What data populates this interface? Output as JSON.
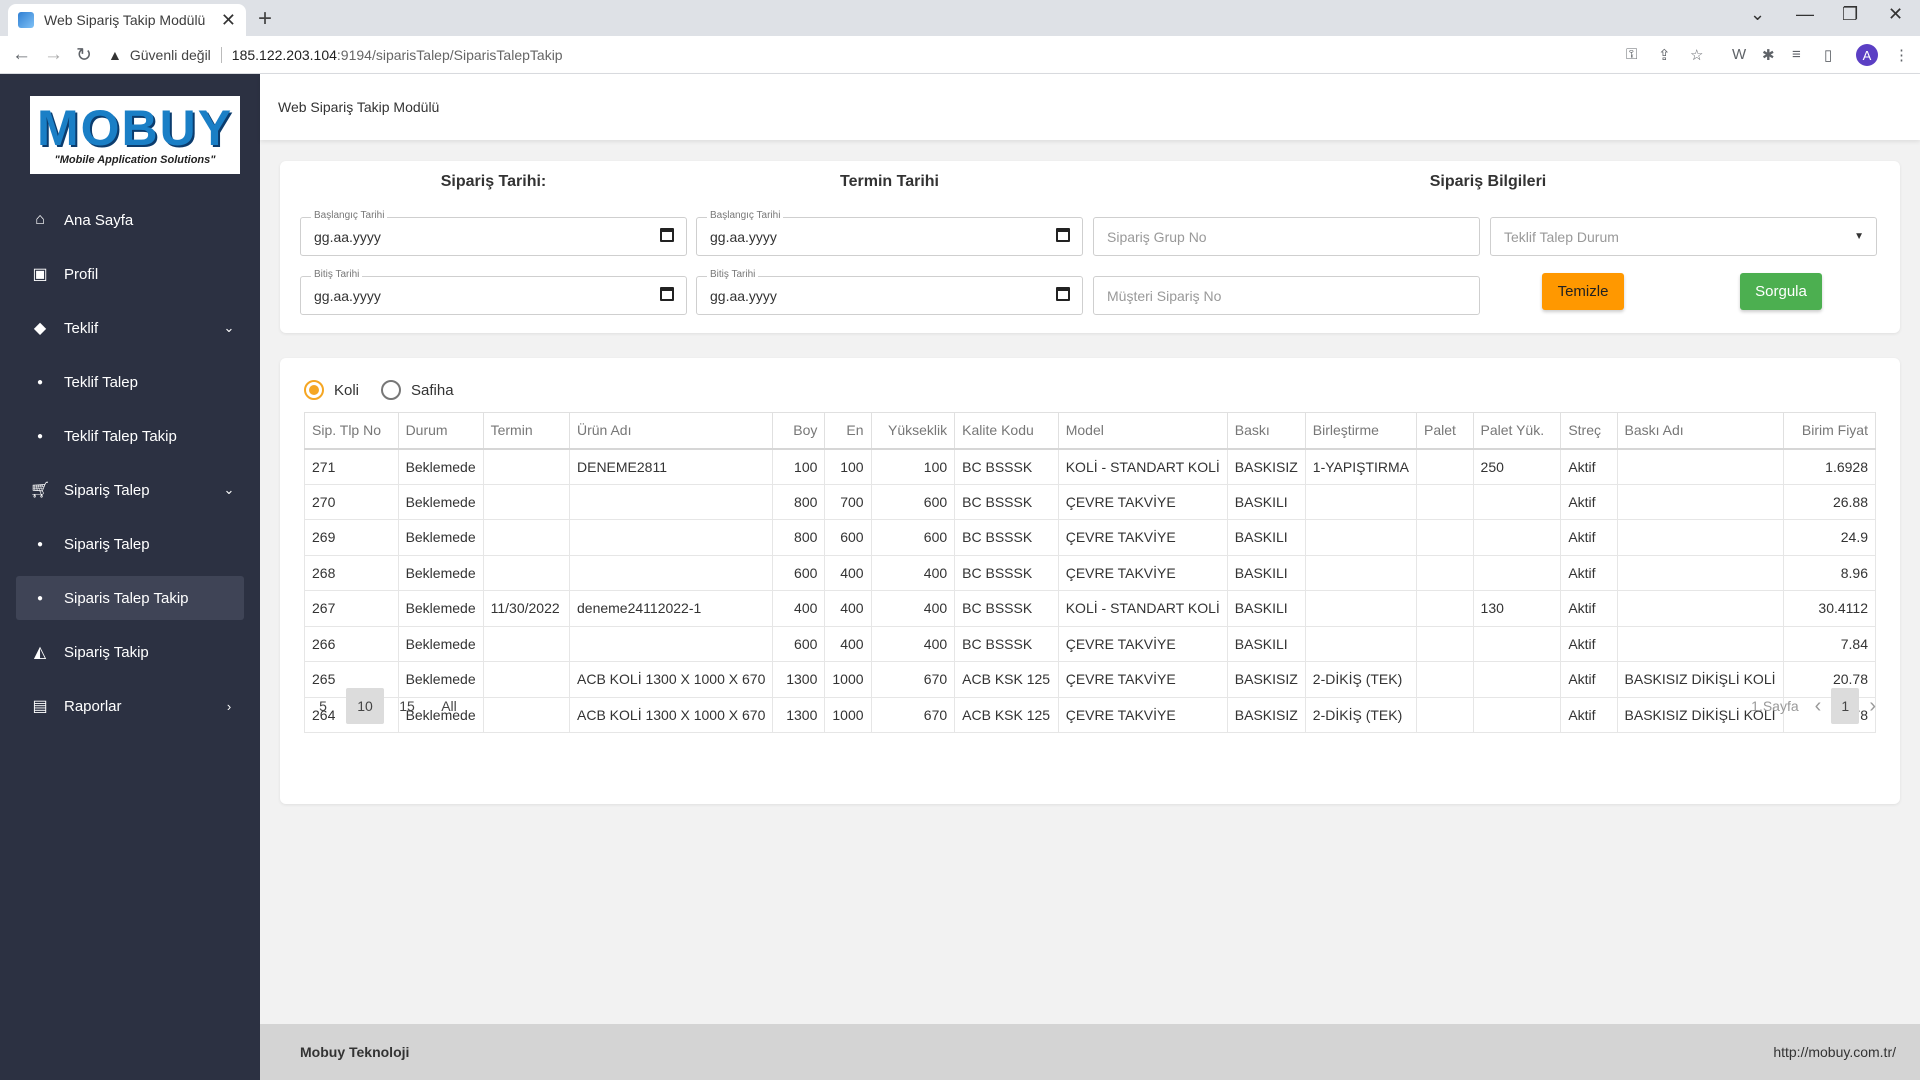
{
  "browser": {
    "tab_title": "Web Sipariş Takip Modülü",
    "tab_close": "✕",
    "new_tab": "+",
    "security_label": "Güvenli değil",
    "url_host": "185.122.203.104",
    "url_path": ":9194/siparisTalep/SiparisTalepTakip",
    "profile_initial": "A"
  },
  "sidebar": {
    "logo_brand": "MOBUY",
    "logo_tagline": "\"Mobile Application Solutions\"",
    "items": [
      {
        "label": "Ana Sayfa",
        "icon": "home-icon"
      },
      {
        "label": "Profil",
        "icon": "profile-icon"
      },
      {
        "label": "Teklif",
        "icon": "tag-icon"
      },
      {
        "label": "Teklif Talep",
        "icon": "dot-icon"
      },
      {
        "label": "Teklif Talep Takip",
        "icon": "dot-icon"
      },
      {
        "label": "Sipariş Talep",
        "icon": "cart-icon"
      },
      {
        "label": "Sipariş Talep",
        "icon": "dot-icon"
      },
      {
        "label": "Siparis Talep Takip",
        "icon": "dot-icon"
      },
      {
        "label": "Sipariş Takip",
        "icon": "bag-icon"
      },
      {
        "label": "Raporlar",
        "icon": "report-icon"
      }
    ]
  },
  "header": {
    "title": "Web Sipariş Takip Modülü"
  },
  "filters": {
    "siparis_tarihi_title": "Sipariş Tarihi:",
    "termin_tarihi_title": "Termin Tarihi",
    "siparis_bilgileri_title": "Sipariş Bilgileri",
    "start_label": "Başlangıç Tarihi",
    "end_label": "Bitiş Tarihi",
    "date_placeholder": "gg.aa.yyyy",
    "grup_no_placeholder": "Sipariş Grup No",
    "musteri_no_placeholder": "Müşteri Sipariş No",
    "durum_placeholder": "Teklif Talep Durum",
    "clear_button": "Temizle",
    "query_button": "Sorgula",
    "accent_orange": "#ff9800",
    "accent_green": "#4caf50"
  },
  "type_select": {
    "option1": "Koli",
    "option2": "Safiha",
    "selected": "Koli"
  },
  "table": {
    "headers": [
      "Sip. Tlp No",
      "Durum",
      "Termin",
      "Ürün Adı",
      "Boy",
      "En",
      "Yükseklik",
      "Kalite Kodu",
      "Model",
      "Baskı",
      "Birleştirme",
      "Palet",
      "Palet Yük.",
      "Streç",
      "Baskı Adı",
      "Birim Fiyat"
    ],
    "rows": [
      [
        "271",
        "Beklemede",
        "",
        "DENEME2811",
        "100",
        "100",
        "100",
        "BC BSSSK",
        "KOLİ - STANDART KOLİ",
        "BASKISIZ",
        "1-YAPIŞTIRMA",
        "",
        "250",
        "Aktif",
        "",
        "1.6928"
      ],
      [
        "270",
        "Beklemede",
        "",
        "",
        "800",
        "700",
        "600",
        "BC BSSSK",
        "ÇEVRE TAKVİYE",
        "BASKILI",
        "",
        "",
        "",
        "Aktif",
        "",
        "26.88"
      ],
      [
        "269",
        "Beklemede",
        "",
        "",
        "800",
        "600",
        "600",
        "BC BSSSK",
        "ÇEVRE TAKVİYE",
        "BASKILI",
        "",
        "",
        "",
        "Aktif",
        "",
        "24.9"
      ],
      [
        "268",
        "Beklemede",
        "",
        "",
        "600",
        "400",
        "400",
        "BC BSSSK",
        "ÇEVRE TAKVİYE",
        "BASKILI",
        "",
        "",
        "",
        "Aktif",
        "",
        "8.96"
      ],
      [
        "267",
        "Beklemede",
        "11/30/2022",
        "deneme24112022-1",
        "400",
        "400",
        "400",
        "BC BSSSK",
        "KOLİ - STANDART KOLİ",
        "BASKILI",
        "",
        "",
        "130",
        "Aktif",
        "",
        "30.4112"
      ],
      [
        "266",
        "Beklemede",
        "",
        "",
        "600",
        "400",
        "400",
        "BC BSSSK",
        "ÇEVRE TAKVİYE",
        "BASKILI",
        "",
        "",
        "",
        "Aktif",
        "",
        "7.84"
      ],
      [
        "265",
        "Beklemede",
        "",
        "ACB KOLİ 1300 X 1000 X 670",
        "1300",
        "1000",
        "670",
        "ACB KSK 125",
        "ÇEVRE TAKVİYE",
        "BASKISIZ",
        "2-DİKİŞ (TEK)",
        "",
        "",
        "Aktif",
        "BASKISIZ DİKİŞLİ KOLİ",
        "20.78"
      ],
      [
        "264",
        "Beklemede",
        "",
        "ACB KOLİ 1300 X 1000 X 670",
        "1300",
        "1000",
        "670",
        "ACB KSK 125",
        "ÇEVRE TAKVİYE",
        "BASKISIZ",
        "2-DİKİŞ (TEK)",
        "",
        "",
        "Aktif",
        "BASKISIZ DİKİŞLİ KOLİ",
        "20.78"
      ]
    ]
  },
  "pagination": {
    "sizes": [
      "5",
      "10",
      "15",
      "All"
    ],
    "selected_size": "10",
    "page_label": "1.Sayfa",
    "current_page": "1"
  },
  "footer": {
    "company": "Mobuy Teknoloji",
    "url": "http://mobuy.com.tr/"
  }
}
